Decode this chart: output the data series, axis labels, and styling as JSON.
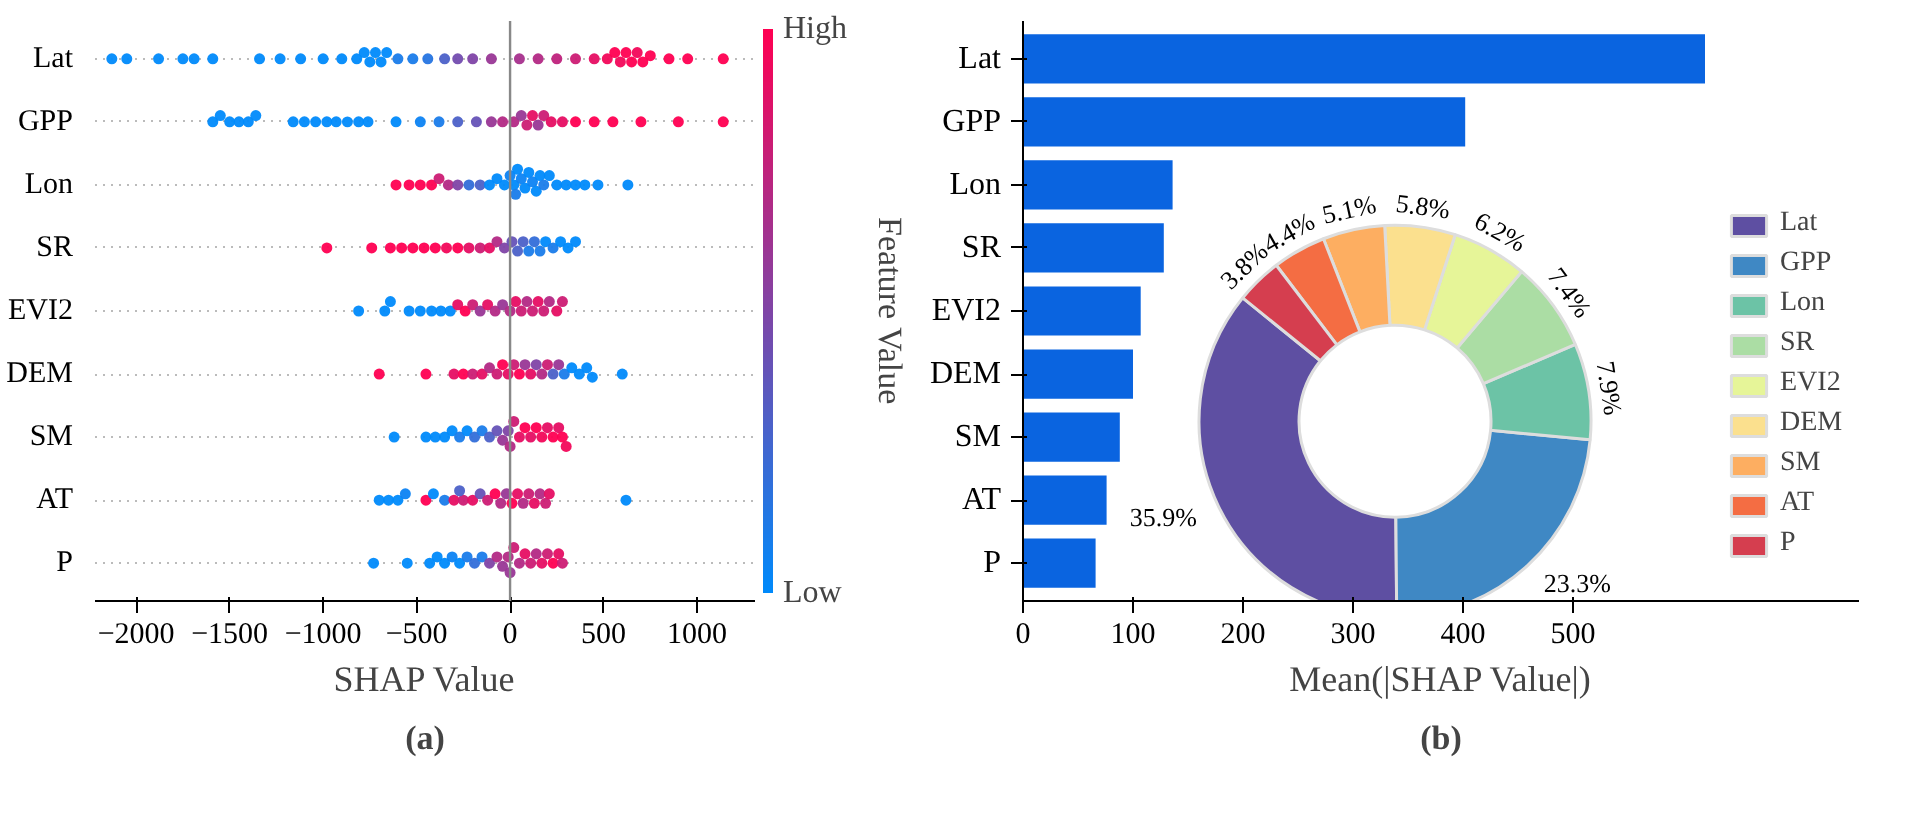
{
  "chart_data": [
    {
      "type": "scatter",
      "marker": "circle",
      "grid": "y",
      "orientation": "horizontal",
      "categories": [
        "Lat",
        "GPP",
        "Lon",
        "SR",
        "EVI2",
        "DEM",
        "SM",
        "AT",
        "P"
      ],
      "xlim": [
        -2220,
        1310
      ],
      "xticks": [
        -2000,
        -1500,
        -1000,
        -500,
        0,
        500,
        1000
      ],
      "xlabel": "SHAP Value",
      "clabel": "Feature Value",
      "clim": [
        0,
        1
      ],
      "cticks": [
        {
          "value": 0,
          "label": "Low"
        },
        {
          "value": 1,
          "label": "High"
        }
      ],
      "ref_lines": [
        {
          "axis": "x",
          "value": 0
        }
      ],
      "annotations": [
        "(a)"
      ],
      "series": [
        {
          "values": [
            -2130,
            -1590,
            -610,
            -980,
            -810,
            -700,
            -620,
            -700,
            -730
          ],
          "colors": [
            "#008afb",
            "#008afb",
            "#ff0052",
            "#ff0052",
            "#008afb",
            "#ff0052",
            "#008afb",
            "#008afb",
            "#008afb"
          ]
        },
        {
          "values": [
            -2050,
            -1550,
            -540,
            -740,
            -670,
            -450,
            -450,
            -650,
            -550
          ],
          "colors": [
            "#008afb",
            "#008afb",
            "#ff0052",
            "#ff0052",
            "#008afb",
            "#ff0052",
            "#008afb",
            "#008afb",
            "#008afb"
          ]
        },
        {
          "values": [
            -1880,
            -1500,
            -480,
            -640,
            -640,
            -300,
            -400,
            -600,
            -430
          ],
          "colors": [
            "#008afb",
            "#008afb",
            "#ff0052",
            "#ff0052",
            "#008afb",
            "#e60e63",
            "#008afb",
            "#008afb",
            "#008afb"
          ]
        },
        {
          "values": [
            -1750,
            -1450,
            -420,
            -580,
            -540,
            -250,
            -350,
            -560,
            -390
          ],
          "colors": [
            "#008afb",
            "#008afb",
            "#ff0052",
            "#ff0052",
            "#008afb",
            "#ff0052",
            "#008afb",
            "#0d83f3",
            "#008afb"
          ]
        },
        {
          "values": [
            -1690,
            -1400,
            -380,
            -520,
            -480,
            -200,
            -310,
            -450,
            -350
          ],
          "colors": [
            "#008afb",
            "#008afb",
            "#cc1c74",
            "#ff0052",
            "#008afb",
            "#cc1c74",
            "#008afb",
            "#ff0052",
            "#008afb"
          ]
        },
        {
          "values": [
            -1590,
            -1360,
            -330,
            -460,
            -420,
            -150,
            -270,
            -410,
            -310
          ],
          "colors": [
            "#008afb",
            "#008afb",
            "#b32985",
            "#ff0052",
            "#008afb",
            "#e60e63",
            "#1a7cea",
            "#008afb",
            "#0d83f3"
          ]
        },
        {
          "values": [
            -1340,
            -1160,
            -280,
            -400,
            -370,
            -110,
            -230,
            -350,
            -270
          ],
          "colors": [
            "#008afb",
            "#008afb",
            "#8045a6",
            "#ff0052",
            "#008afb",
            "#b32985",
            "#008afb",
            "#1a7cea",
            "#008afb"
          ]
        },
        {
          "values": [
            -1230,
            -1100,
            -220,
            -340,
            -320,
            -70,
            -190,
            -300,
            -230
          ],
          "colors": [
            "#008afb",
            "#008afb",
            "#336ed9",
            "#f2075a",
            "#008afb",
            "#cc1c74",
            "#336ed9",
            "#e60e63",
            "#1a7cea"
          ]
        },
        {
          "values": [
            -1120,
            -1040,
            -160,
            -280,
            -280,
            -40,
            -150,
            -250,
            -190
          ],
          "colors": [
            "#008afb",
            "#008afb",
            "#4c61c8",
            "#ff0052",
            "#e60e63",
            "#ff0052",
            "#1a7cea",
            "#cc1c74",
            "#336ed9"
          ]
        },
        {
          "values": [
            -1000,
            -980,
            -110,
            -220,
            -240,
            -10,
            -110,
            -200,
            -150
          ],
          "colors": [
            "#008afb",
            "#008afb",
            "#008afb",
            "#e60e63",
            "#ff0052",
            "#e60e63",
            "#4c61c8",
            "#e60e63",
            "#1a7cea"
          ]
        },
        {
          "values": [
            -900,
            -930,
            -70,
            -160,
            -200,
            20,
            -70,
            -160,
            -110
          ],
          "colors": [
            "#008afb",
            "#008afb",
            "#008afb",
            "#cc1c74",
            "#cc1c74",
            "#cc1c74",
            "#6653b7",
            "#6653b7",
            "#8045a6"
          ]
        },
        {
          "values": [
            -820,
            -870,
            -30,
            -110,
            -160,
            50,
            -40,
            -120,
            -70
          ],
          "colors": [
            "#008afb",
            "#008afb",
            "#008afb",
            "#e60e63",
            "#993796",
            "#ff0052",
            "#993796",
            "#cc1c74",
            "#b32985"
          ]
        },
        {
          "values": [
            -780,
            -810,
            0,
            -70,
            -120,
            80,
            -10,
            -80,
            -40
          ],
          "colors": [
            "#008afb",
            "#008afb",
            "#0d83f3",
            "#b32985",
            "#e60e63",
            "#993796",
            "#8045a6",
            "#ff0052",
            "#993796"
          ]
        },
        {
          "values": [
            -750,
            -760,
            20,
            -30,
            -80,
            110,
            20,
            -50,
            -10
          ],
          "colors": [
            "#008afb",
            "#008afb",
            "#008afb",
            "#8045a6",
            "#b32985",
            "#e60e63",
            "#cc1c74",
            "#b32985",
            "#b32985"
          ]
        },
        {
          "values": [
            -720,
            -610,
            40,
            10,
            -40,
            140,
            50,
            -20,
            20
          ],
          "colors": [
            "#008afb",
            "#008afb",
            "#008afb",
            "#6653b7",
            "#993796",
            "#8045a6",
            "#e60e63",
            "#993796",
            "#cc1c74"
          ]
        },
        {
          "values": [
            -690,
            -480,
            60,
            40,
            0,
            170,
            80,
            10,
            50
          ],
          "colors": [
            "#008afb",
            "#0d83f3",
            "#0d83f3",
            "#4c61c8",
            "#b32985",
            "#b32985",
            "#ff0052",
            "#ff0052",
            "#b32985"
          ]
        },
        {
          "values": [
            -660,
            -380,
            80,
            70,
            30,
            200,
            110,
            40,
            80
          ],
          "colors": [
            "#008afb",
            "#1a7cea",
            "#008afb",
            "#4c61c8",
            "#e60e63",
            "#cc1c74",
            "#e60e63",
            "#e60e63",
            "#e60e63"
          ]
        },
        {
          "values": [
            -600,
            -280,
            100,
            100,
            60,
            230,
            140,
            70,
            110
          ],
          "colors": [
            "#1a7cea",
            "#4c61c8",
            "#008afb",
            "#1a7cea",
            "#cc1c74",
            "#4c61c8",
            "#ff0052",
            "#b32985",
            "#cc1c74"
          ]
        },
        {
          "values": [
            -520,
            -180,
            120,
            130,
            90,
            260,
            170,
            100,
            140
          ],
          "colors": [
            "#1a7cea",
            "#6653b7",
            "#0d83f3",
            "#336ed9",
            "#b32985",
            "#993796",
            "#f2075a",
            "#cc1c74",
            "#b32985"
          ]
        },
        {
          "values": [
            -440,
            -100,
            140,
            160,
            120,
            290,
            200,
            130,
            170
          ],
          "colors": [
            "#2675e2",
            "#993796",
            "#008afb",
            "#1a7cea",
            "#cc1c74",
            "#1a7cea",
            "#e60e63",
            "#e60e63",
            "#e60e63"
          ]
        },
        {
          "values": [
            -350,
            -40,
            160,
            190,
            150,
            330,
            230,
            160,
            200
          ],
          "colors": [
            "#4c61c8",
            "#b32985",
            "#008afb",
            "#008afb",
            "#e60e63",
            "#008afb",
            "#ff0052",
            "#b32985",
            "#cc1c74"
          ]
        },
        {
          "values": [
            -280,
            20,
            180,
            230,
            180,
            370,
            260,
            190,
            230
          ],
          "colors": [
            "#734caf",
            "#b32985",
            "#1a7cea",
            "#1a7cea",
            "#cc1c74",
            "#008afb",
            "#e60e63",
            "#cc1c74",
            "#ff0052"
          ]
        },
        {
          "values": [
            -200,
            60,
            210,
            270,
            210,
            410,
            280,
            210,
            260
          ],
          "colors": [
            "#8045a6",
            "#993796",
            "#008afb",
            "#008afb",
            "#b32985",
            "#008afb",
            "#ff0052",
            "#e60e63",
            "#e60e63"
          ]
        },
        {
          "values": [
            -100,
            90,
            250,
            310,
            250,
            440,
            300,
            620,
            280
          ],
          "colors": [
            "#993796",
            "#cc1c74",
            "#008afb",
            "#008afb",
            "#e60e63",
            "#008afb",
            "#f2075a",
            "#008afb",
            "#cc1c74"
          ]
        },
        {
          "values": [
            50,
            120,
            300,
            350,
            280,
            600,
            0,
            -270,
            0
          ],
          "colors": [
            "#a6308d",
            "#e60e63",
            "#008afb",
            "#008afb",
            "#cc1c74",
            "#008afb",
            "#b32985",
            "#4c61c8",
            "#993796"
          ]
        },
        {
          "values": [
            150,
            150,
            350,
            null,
            null,
            null,
            null,
            null,
            null
          ],
          "colors": [
            "#b32985",
            "#993796",
            "#008afb",
            null,
            null,
            null,
            null,
            null,
            null
          ]
        },
        {
          "values": [
            250,
            180,
            400,
            null,
            null,
            null,
            null,
            null,
            null
          ],
          "colors": [
            "#bf227c",
            "#cc1c74",
            "#008afb",
            null,
            null,
            null,
            null,
            null,
            null
          ]
        },
        {
          "values": [
            350,
            220,
            470,
            null,
            null,
            null,
            null,
            null,
            null
          ],
          "colors": [
            "#cc1c74",
            "#e60e63",
            "#008afb",
            null,
            null,
            null,
            null,
            null,
            null
          ]
        },
        {
          "values": [
            450,
            280,
            630,
            null,
            null,
            null,
            null,
            null,
            null
          ],
          "colors": [
            "#e60e63",
            "#e60e63",
            "#008afb",
            null,
            null,
            null,
            null,
            null,
            null
          ]
        },
        {
          "values": [
            520,
            350,
            30,
            null,
            null,
            null,
            null,
            null,
            null
          ],
          "colors": [
            "#f2075a",
            "#ff0052",
            "#1a7cea",
            null,
            null,
            null,
            null,
            null,
            null
          ]
        },
        {
          "values": [
            560,
            450,
            null,
            null,
            null,
            null,
            null,
            null,
            null
          ],
          "colors": [
            "#ff0052",
            "#ff0052",
            null,
            null,
            null,
            null,
            null,
            null,
            null
          ]
        },
        {
          "values": [
            590,
            550,
            null,
            null,
            null,
            null,
            null,
            null,
            null
          ],
          "colors": [
            "#f2075a",
            "#ff0052",
            null,
            null,
            null,
            null,
            null,
            null,
            null
          ]
        },
        {
          "values": [
            620,
            700,
            null,
            null,
            null,
            null,
            null,
            null,
            null
          ],
          "colors": [
            "#ff0052",
            "#ff0052",
            null,
            null,
            null,
            null,
            null,
            null,
            null
          ]
        },
        {
          "values": [
            650,
            900,
            null,
            null,
            null,
            null,
            null,
            null,
            null
          ],
          "colors": [
            "#ff0052",
            "#ff0052",
            null,
            null,
            null,
            null,
            null,
            null,
            null
          ]
        },
        {
          "values": [
            680,
            1140,
            null,
            null,
            null,
            null,
            null,
            null,
            null
          ],
          "colors": [
            "#f2075a",
            "#ff0052",
            null,
            null,
            null,
            null,
            null,
            null,
            null
          ]
        },
        {
          "values": [
            710,
            null,
            null,
            null,
            null,
            null,
            null,
            null,
            null
          ],
          "colors": [
            "#ff0052",
            null,
            null,
            null,
            null,
            null,
            null,
            null,
            null
          ]
        },
        {
          "values": [
            750,
            null,
            null,
            null,
            null,
            null,
            null,
            null,
            null
          ],
          "colors": [
            "#ff0052",
            null,
            null,
            null,
            null,
            null,
            null,
            null,
            null
          ]
        },
        {
          "values": [
            850,
            null,
            null,
            null,
            null,
            null,
            null,
            null,
            null
          ],
          "colors": [
            "#ff0052",
            null,
            null,
            null,
            null,
            null,
            null,
            null,
            null
          ]
        },
        {
          "values": [
            950,
            null,
            null,
            null,
            null,
            null,
            null,
            null,
            null
          ],
          "colors": [
            "#ff0052",
            null,
            null,
            null,
            null,
            null,
            null,
            null,
            null
          ]
        },
        {
          "values": [
            1140,
            null,
            null,
            null,
            null,
            null,
            null,
            null,
            null
          ],
          "colors": [
            "#ff0052",
            null,
            null,
            null,
            null,
            null,
            null,
            null,
            null
          ]
        }
      ]
    },
    {
      "type": "bar",
      "orientation": "horizontal",
      "categories": [
        "Lat",
        "GPP",
        "Lon",
        "SR",
        "EVI2",
        "DEM",
        "SM",
        "AT",
        "P"
      ],
      "values": [
        620,
        402,
        136,
        128,
        107,
        100,
        88,
        76,
        66
      ],
      "color": "#0a64e0",
      "xlim": [
        0,
        760
      ],
      "xticks": [
        0,
        100,
        200,
        300,
        400,
        500
      ],
      "xlabel": "Mean(|SHAP Value|)",
      "annotations": [
        "(b)"
      ]
    },
    {
      "type": "donut",
      "legend": "right",
      "categories": [
        "Lat",
        "GPP",
        "Lon",
        "SR",
        "EVI2",
        "DEM",
        "SM",
        "AT",
        "P"
      ],
      "values": [
        35.9,
        23.3,
        7.9,
        7.4,
        6.2,
        5.8,
        5.1,
        4.4,
        3.8
      ],
      "value_labels": [
        "35.9%",
        "23.3%",
        "7.9%",
        "7.4%",
        "6.2%",
        "5.8%",
        "5.1%",
        "4.4%",
        "3.8%"
      ],
      "colors": [
        "#5e4fa2",
        "#3f88c4",
        "#6cc3a6",
        "#abdda4",
        "#e6f598",
        "#fbe08e",
        "#fdae61",
        "#f46d43",
        "#d53e4f"
      ]
    }
  ]
}
